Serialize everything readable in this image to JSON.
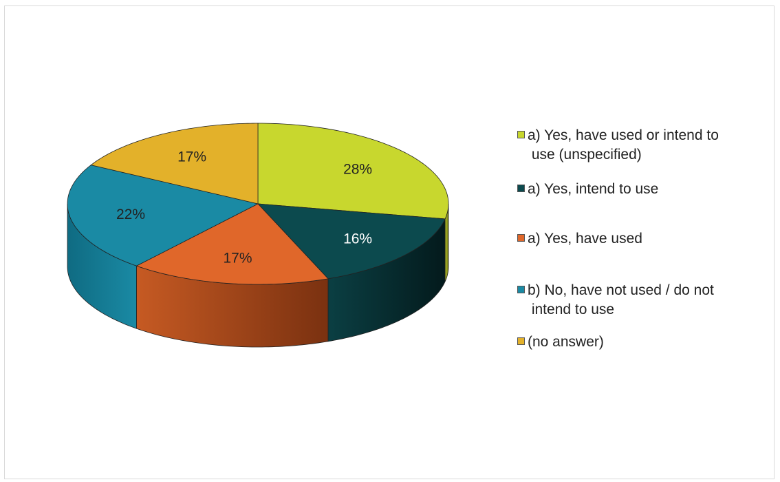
{
  "chart_data": {
    "type": "pie",
    "categories": [
      "a) Yes, have used or intend to use (unspecified)",
      "a) Yes, intend to use",
      "a) Yes, have used",
      "b) No, have not used / do not intend to use",
      "(no answer)"
    ],
    "values": [
      28,
      16,
      17,
      22,
      17
    ],
    "data_labels": [
      "28%",
      "16%",
      "17%",
      "22%",
      "17%"
    ],
    "colors": [
      "#c8d72e",
      "#0c4a4e",
      "#e0672a",
      "#1a8aa4",
      "#e3b12a"
    ],
    "style": "3d",
    "legend_position": "right"
  }
}
